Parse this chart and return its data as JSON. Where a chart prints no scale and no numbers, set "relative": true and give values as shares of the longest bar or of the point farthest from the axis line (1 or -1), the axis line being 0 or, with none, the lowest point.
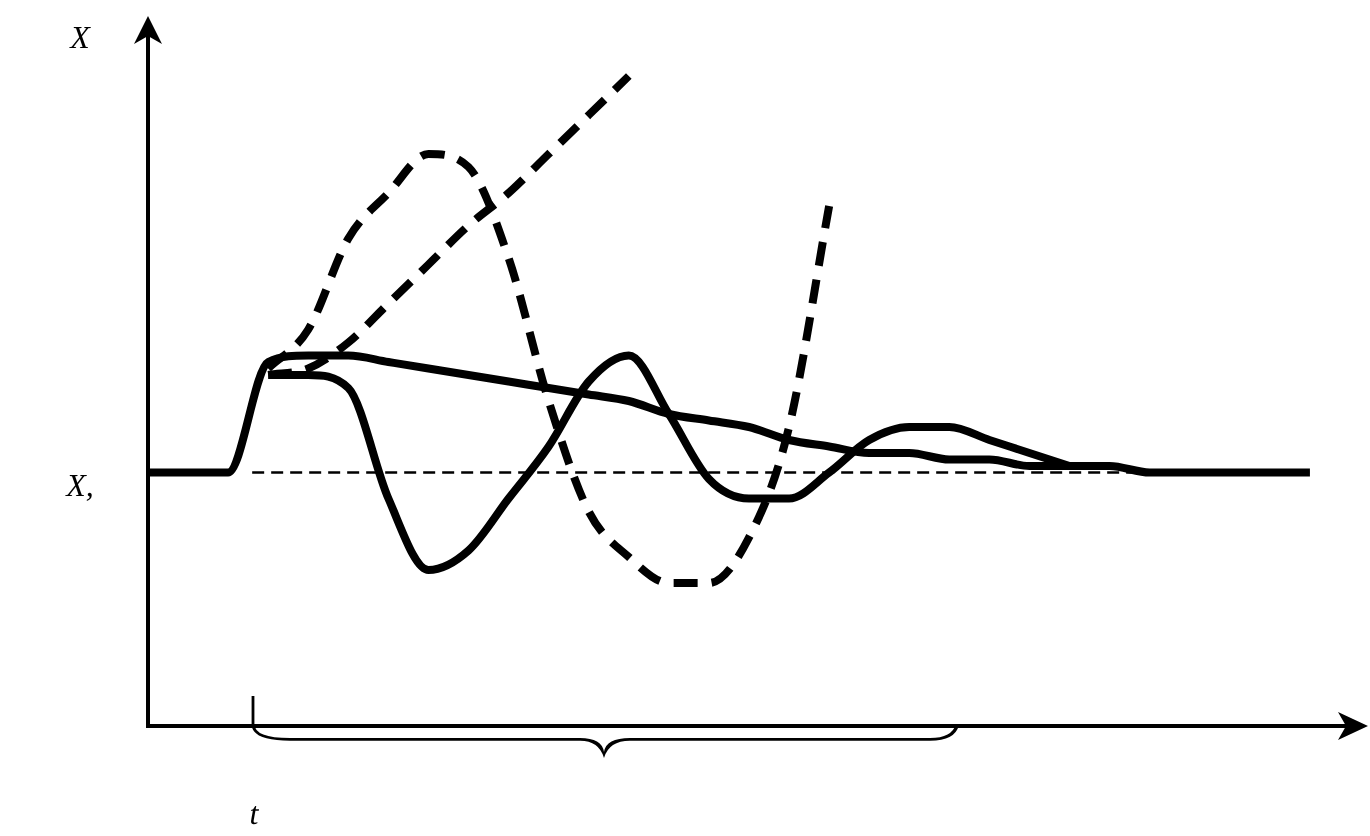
{
  "chart_data": {
    "type": "line",
    "relative": true,
    "xlabel": "t",
    "ylabel": "X",
    "annotations": [
      "X,"
    ],
    "marker": "none",
    "legend": false,
    "grid": false,
    "categories": [
      null,
      null,
      null,
      null,
      null,
      null,
      null,
      null,
      null,
      null,
      null,
      null,
      null,
      null,
      null,
      null,
      null,
      null,
      null,
      null,
      null,
      null,
      null,
      null,
      null,
      null,
      null,
      null,
      null,
      null
    ],
    "series": [
      {
        "color": "#000000",
        "line_style": "solid",
        "values": [
          0.39,
          0.39,
          0.39,
          0.56,
          0.57,
          0.57,
          0.56,
          0.55,
          0.54,
          0.53,
          0.52,
          0.51,
          0.5,
          0.48,
          0.47,
          0.46,
          0.44,
          0.43,
          0.42,
          0.42,
          0.41,
          0.41,
          0.4,
          0.4,
          0.4,
          0.39,
          0.39,
          0.39,
          0.39,
          0.39
        ]
      },
      {
        "color": "#000000",
        "line_style": "solid",
        "values": [
          null,
          null,
          null,
          0.54,
          0.54,
          0.52,
          0.35,
          0.24,
          0.27,
          0.35,
          0.43,
          0.53,
          0.57,
          0.48,
          0.38,
          0.35,
          0.35,
          0.39,
          0.44,
          0.46,
          0.46,
          0.44,
          0.42,
          0.4,
          null,
          null,
          null,
          null,
          null,
          null
        ]
      },
      {
        "color": "#000000",
        "line_style": "dashed",
        "values": [
          null,
          null,
          null,
          0.54,
          0.55,
          0.59,
          0.65,
          0.71,
          0.77,
          0.82,
          0.88,
          0.94,
          1,
          null,
          null,
          null,
          null,
          null,
          null,
          null,
          null,
          null,
          null,
          null,
          null,
          null,
          null,
          null,
          null,
          null
        ]
      },
      {
        "color": "#000000",
        "line_style": "dashed",
        "values": [
          null,
          null,
          null,
          0.55,
          0.61,
          0.75,
          0.82,
          0.88,
          0.86,
          0.72,
          0.5,
          0.33,
          0.26,
          0.22,
          0.22,
          0.29,
          0.46,
          0.8,
          null,
          null,
          null,
          null,
          null,
          null,
          null,
          null,
          null,
          null,
          null,
          null
        ]
      }
    ],
    "ref_lines": [
      {
        "axis": "y",
        "value": 0.39,
        "line_style": "dashed",
        "color": "#000000"
      }
    ]
  }
}
